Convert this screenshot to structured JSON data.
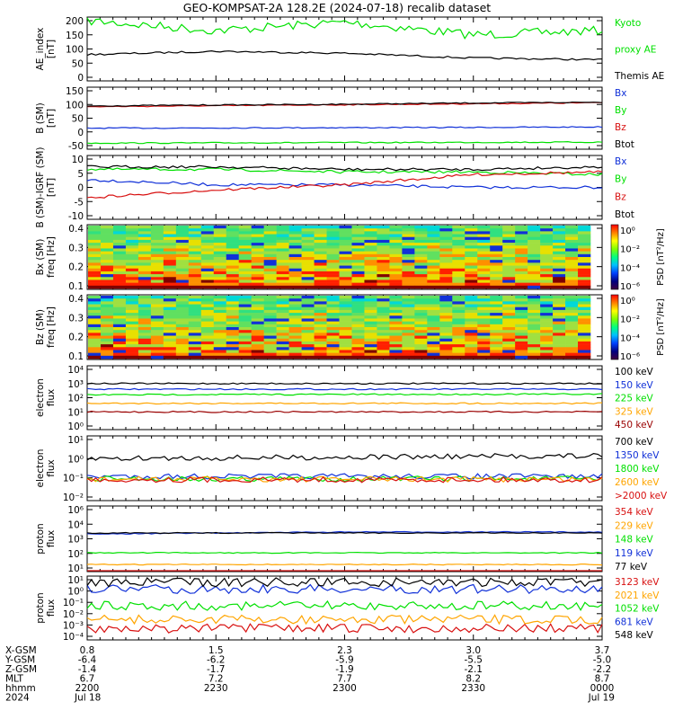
{
  "title": "GEO-KOMPSAT-2A 128.2E (2024-07-18) recalib dataset",
  "colors": {
    "black": "#000000",
    "green": "#00e000",
    "red": "#d81010",
    "blue": "#1030d8",
    "orange": "#ffa500",
    "darkred": "#9a0000"
  },
  "panels": [
    {
      "id": "ae",
      "ylabel": [
        "AE_index",
        "[nT]"
      ],
      "yticks": [
        "200",
        "150",
        "100",
        "50",
        "0"
      ],
      "legend": [
        {
          "text": "Kyoto",
          "color": "green"
        },
        {
          "text": "proxy AE",
          "color": "green"
        },
        {
          "text": "Themis AE",
          "color": "black"
        }
      ]
    },
    {
      "id": "bsm",
      "ylabel": [
        "B (SM)",
        "[nT]"
      ],
      "yticks": [
        "150",
        "100",
        "50",
        "0",
        "-50"
      ],
      "legend": [
        {
          "text": "Bx",
          "color": "blue"
        },
        {
          "text": "By",
          "color": "green"
        },
        {
          "text": "Bz",
          "color": "red"
        },
        {
          "text": "Btot",
          "color": "black"
        }
      ]
    },
    {
      "id": "bigrf",
      "ylabel": [
        "B (SM)-IGRF (SM)",
        "[nT]"
      ],
      "yticks": [
        "10",
        "5",
        "0",
        "-5",
        "-10"
      ],
      "legend": [
        {
          "text": "Bx",
          "color": "blue"
        },
        {
          "text": "By",
          "color": "green"
        },
        {
          "text": "Bz",
          "color": "red"
        },
        {
          "text": "Btot",
          "color": "black"
        }
      ]
    },
    {
      "id": "specx",
      "ylabel": [
        "Bx (SM)",
        "freq [Hz]"
      ],
      "yticks": [
        "0.4",
        "0.3",
        "0.2",
        "0.1"
      ],
      "cbar": {
        "ticks": [
          "10⁰",
          "10⁻²",
          "10⁻⁴",
          "10⁻⁶"
        ],
        "label": "PSD [nT²/Hz]"
      }
    },
    {
      "id": "specz",
      "ylabel": [
        "Bz (SM)",
        "freq [Hz]"
      ],
      "yticks": [
        "0.4",
        "0.3",
        "0.2",
        "0.1"
      ],
      "cbar": {
        "ticks": [
          "10⁰",
          "10⁻²",
          "10⁻⁴",
          "10⁻⁶"
        ],
        "label": "PSD [nT²/Hz]"
      }
    },
    {
      "id": "elow",
      "ylabel": [
        "electron",
        "flux"
      ],
      "yticks": [
        "10⁴",
        "10³",
        "10²",
        "10¹",
        "10⁰"
      ],
      "legend": [
        {
          "text": "100 keV",
          "color": "black"
        },
        {
          "text": "150 keV",
          "color": "blue"
        },
        {
          "text": "225 keV",
          "color": "green"
        },
        {
          "text": "325 keV",
          "color": "orange"
        },
        {
          "text": "450 keV",
          "color": "darkred"
        }
      ]
    },
    {
      "id": "ehigh",
      "ylabel": [
        "electron",
        "flux"
      ],
      "yticks": [
        "10¹",
        "10⁰",
        "10⁻¹",
        "10⁻²"
      ],
      "legend": [
        {
          "text": "700 keV",
          "color": "black"
        },
        {
          "text": "1350 keV",
          "color": "blue"
        },
        {
          "text": "1800 keV",
          "color": "green"
        },
        {
          "text": "2600 keV",
          "color": "orange"
        },
        {
          "text": ">2000 keV",
          "color": "red"
        }
      ]
    },
    {
      "id": "plow",
      "ylabel": [
        "proton",
        "flux"
      ],
      "yticks": [
        "10⁶",
        "10⁴",
        "10³",
        "10²",
        "10¹"
      ],
      "legend": [
        {
          "text": "354 keV",
          "color": "red"
        },
        {
          "text": "229 keV",
          "color": "orange"
        },
        {
          "text": "148 keV",
          "color": "green"
        },
        {
          "text": "119 keV",
          "color": "blue"
        },
        {
          "text": "77 keV",
          "color": "black"
        }
      ]
    },
    {
      "id": "phigh",
      "ylabel": [
        "proton",
        "flux"
      ],
      "yticks": [
        "10¹",
        "10⁰",
        "10⁻¹",
        "10⁻²",
        "10⁻³",
        "10⁻⁴"
      ],
      "legend": [
        {
          "text": "3123 keV",
          "color": "red"
        },
        {
          "text": "2021 keV",
          "color": "orange"
        },
        {
          "text": "1052 keV",
          "color": "green"
        },
        {
          "text": "681 keV",
          "color": "blue"
        },
        {
          "text": "548 keV",
          "color": "black"
        }
      ]
    }
  ],
  "footer": {
    "row_labels": [
      "X-GSM",
      "Y-GSM",
      "Z-GSM",
      "MLT",
      "hhmm",
      "2024"
    ],
    "columns": [
      [
        "0.8",
        "-6.4",
        "-1.4",
        "6.7",
        "2200",
        "Jul 18"
      ],
      [
        "1.5",
        "-6.2",
        "-1.7",
        "7.2",
        "2230",
        ""
      ],
      [
        "2.3",
        "-5.9",
        "-1.9",
        "7.7",
        "2300",
        ""
      ],
      [
        "3.0",
        "-5.5",
        "-2.1",
        "8.2",
        "2330",
        ""
      ],
      [
        "3.7",
        "-5.0",
        "-2.2",
        "8.7",
        "0000",
        "Jul 19"
      ]
    ]
  },
  "chart_data": [
    {
      "type": "line",
      "title": "",
      "ylabel": "AE_index [nT]",
      "ylim": [
        0,
        200
      ],
      "x": [
        "2200",
        "2230",
        "2300",
        "2330",
        "0000"
      ],
      "series": [
        {
          "name": "Kyoto proxy AE",
          "values": [
            200,
            165,
            195,
            150,
            165
          ]
        },
        {
          "name": "Themis AE",
          "values": [
            80,
            92,
            85,
            68,
            62
          ]
        }
      ]
    },
    {
      "type": "line",
      "ylabel": "B (SM) [nT]",
      "ylim": [
        -60,
        160
      ],
      "x": [
        "2200",
        "2230",
        "2300",
        "2330",
        "0000"
      ],
      "series": [
        {
          "name": "Bx",
          "values": [
            10,
            11,
            12,
            13,
            15
          ]
        },
        {
          "name": "By",
          "values": [
            -50,
            -49,
            -48,
            -47,
            -46
          ]
        },
        {
          "name": "Bz",
          "values": [
            96,
            100,
            104,
            108,
            112
          ]
        },
        {
          "name": "Btot",
          "values": [
            99,
            103,
            106,
            111,
            114
          ]
        }
      ]
    },
    {
      "type": "line",
      "ylabel": "B (SM)-IGRF (SM) [nT]",
      "ylim": [
        -12,
        10
      ],
      "x": [
        "2200",
        "2230",
        "2300",
        "2330",
        "0000"
      ],
      "series": [
        {
          "name": "Bx",
          "values": [
            2,
            0,
            0,
            -1,
            -1
          ]
        },
        {
          "name": "By",
          "values": [
            6,
            6,
            5,
            5,
            4
          ]
        },
        {
          "name": "Bz",
          "values": [
            -5,
            -2,
            0,
            4,
            5
          ]
        },
        {
          "name": "Btot",
          "values": [
            7,
            7,
            6,
            6,
            7
          ]
        }
      ]
    },
    {
      "type": "heatmap",
      "ylabel": "Bx (SM) freq [Hz]",
      "ylim": [
        0,
        0.5
      ],
      "colorbar": "PSD [nT²/Hz]"
    },
    {
      "type": "heatmap",
      "ylabel": "Bz (SM) freq [Hz]",
      "ylim": [
        0,
        0.5
      ],
      "colorbar": "PSD [nT²/Hz]"
    },
    {
      "type": "line",
      "ylabel": "electron flux",
      "scale": "log",
      "ylim": [
        1,
        10000
      ],
      "series": [
        {
          "name": "100 keV",
          "values": [
            1000,
            1000,
            1000,
            1000,
            1000
          ]
        },
        {
          "name": "150 keV",
          "values": [
            400,
            400,
            400,
            400,
            400
          ]
        },
        {
          "name": "225 keV",
          "values": [
            160,
            170,
            170,
            175,
            180
          ]
        },
        {
          "name": "325 keV",
          "values": [
            40,
            40,
            40,
            40,
            40
          ]
        },
        {
          "name": "450 keV",
          "values": [
            10,
            10,
            10,
            10,
            10
          ]
        }
      ]
    },
    {
      "type": "line",
      "ylabel": "electron flux",
      "scale": "log",
      "ylim": [
        0.01,
        10
      ],
      "series": [
        {
          "name": "700 keV",
          "values": [
            1.0,
            1.1,
            1.2,
            1.3,
            1.4
          ]
        },
        {
          "name": "1350 keV",
          "values": [
            0.12,
            0.12,
            0.12,
            0.12,
            0.12
          ]
        },
        {
          "name": "1800 keV",
          "values": [
            0.09,
            0.09,
            0.09,
            0.09,
            0.09
          ]
        },
        {
          "name": "2600 keV",
          "values": [
            0.085,
            0.085,
            0.085,
            0.085,
            0.085
          ]
        },
        {
          "name": ">2000 keV",
          "values": [
            0.08,
            0.08,
            0.08,
            0.08,
            0.08
          ]
        }
      ]
    },
    {
      "type": "line",
      "ylabel": "proton flux",
      "scale": "log",
      "ylim": [
        10,
        1000000
      ],
      "series": [
        {
          "name": "354 keV",
          "values": [
            5,
            5,
            5,
            5,
            5
          ]
        },
        {
          "name": "229 keV",
          "values": [
            20,
            20,
            20,
            20,
            20
          ]
        },
        {
          "name": "148 keV",
          "values": [
            200,
            200,
            200,
            200,
            200
          ]
        },
        {
          "name": "119 keV",
          "values": [
            8000,
            10000,
            12000,
            12000,
            12000
          ]
        },
        {
          "name": "77 keV",
          "values": [
            10000,
            10000,
            10000,
            10000,
            10000
          ]
        }
      ]
    },
    {
      "type": "line",
      "ylabel": "proton flux",
      "scale": "log",
      "ylim": [
        0.0001,
        10
      ],
      "series": [
        {
          "name": "3123 keV",
          "values": [
            0.0005,
            0.0005,
            0.0005,
            0.0005,
            0.0005
          ]
        },
        {
          "name": "2021 keV",
          "values": [
            0.003,
            0.003,
            0.003,
            0.003,
            0.003
          ]
        },
        {
          "name": "1052 keV",
          "values": [
            0.05,
            0.05,
            0.05,
            0.05,
            0.05
          ]
        },
        {
          "name": "681 keV",
          "values": [
            1.5,
            1.5,
            1.5,
            1.5,
            1.5
          ]
        },
        {
          "name": "548 keV",
          "values": [
            6,
            6,
            6,
            6,
            6
          ]
        }
      ]
    }
  ]
}
